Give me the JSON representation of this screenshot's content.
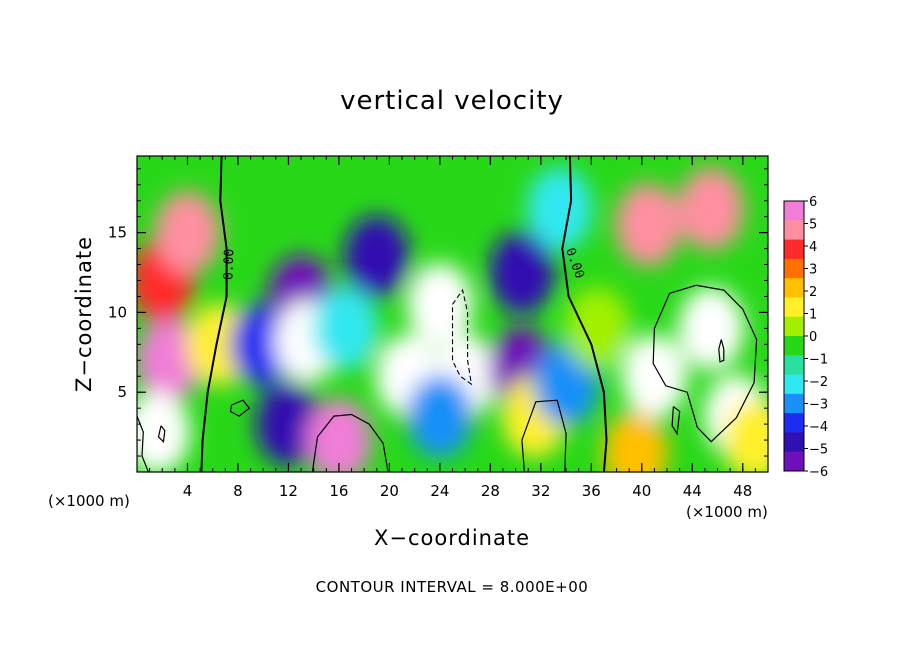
{
  "chart_data": {
    "type": "heatmap",
    "title": "vertical velocity",
    "xlabel": "X−coordinate",
    "ylabel": "Z−coordinate",
    "x_unit_label": "(×1000 m)",
    "footnote": "CONTOUR INTERVAL = 8.000E+00",
    "xlim": [
      0,
      50
    ],
    "ylim": [
      0,
      19.8
    ],
    "x_ticks": [
      4,
      8,
      12,
      16,
      20,
      24,
      28,
      32,
      36,
      40,
      44,
      48
    ],
    "y_ticks": [
      5,
      10,
      15
    ],
    "x_minor_step": 1,
    "y_minor_step": 1,
    "contour_labels": [
      {
        "text": "0.00",
        "x": 7.6,
        "z": 13.0
      },
      {
        "text": "0.00",
        "x": 34.4,
        "z": 13.0
      }
    ],
    "colorbar": {
      "ticks": [
        6,
        5,
        4,
        3,
        2,
        1,
        0,
        -1,
        -2,
        -3,
        -4,
        -5,
        -6
      ],
      "tick_labels": [
        "6",
        "5",
        "4",
        "3",
        "2",
        "1",
        "0",
        "−1",
        "−2",
        "−3",
        "−4",
        "−5",
        "−6"
      ],
      "range": [
        -6,
        6
      ],
      "colors": [
        "#f07dd8",
        "#ff8fa0",
        "#ff2a2a",
        "#ff7000",
        "#ffc000",
        "#fff02a",
        "#a0f000",
        "#28d818",
        "#28e0a0",
        "#30e8f0",
        "#1890f8",
        "#1c2cf0",
        "#3010b0",
        "#7010b8"
      ]
    },
    "regions": [
      {
        "x": 2.0,
        "z": 12.0,
        "v": 4.2
      },
      {
        "x": 4.0,
        "z": 15.0,
        "v": 5.0
      },
      {
        "x": 2.5,
        "z": 7.0,
        "v": 5.2
      },
      {
        "x": 1.6,
        "z": 2.5,
        "v": 7.0
      },
      {
        "x": 6.5,
        "z": 8.0,
        "v": 1.4
      },
      {
        "x": 10.0,
        "z": 8.0,
        "v": -3.5
      },
      {
        "x": 13.0,
        "z": 11.0,
        "v": -5.2
      },
      {
        "x": 13.5,
        "z": 8.2,
        "v": -7.5
      },
      {
        "x": 12.0,
        "z": 3.0,
        "v": -5.0
      },
      {
        "x": 16.0,
        "z": 2.0,
        "v": 5.8
      },
      {
        "x": 16.5,
        "z": 9.0,
        "v": -2.2
      },
      {
        "x": 19.0,
        "z": 13.5,
        "v": -4.5
      },
      {
        "x": 24.0,
        "z": 10.5,
        "v": -8.5
      },
      {
        "x": 21.5,
        "z": 6.0,
        "v": -7.8
      },
      {
        "x": 26.0,
        "z": 6.0,
        "v": -8.0
      },
      {
        "x": 24.0,
        "z": 3.5,
        "v": -3.0
      },
      {
        "x": 30.5,
        "z": 12.5,
        "v": -4.8
      },
      {
        "x": 30.5,
        "z": 6.5,
        "v": -5.2
      },
      {
        "x": 31.5,
        "z": 3.5,
        "v": 1.0
      },
      {
        "x": 34.0,
        "z": 5.5,
        "v": -3.2
      },
      {
        "x": 33.5,
        "z": 16.5,
        "v": -2.0
      },
      {
        "x": 36.5,
        "z": 9.0,
        "v": 0.8
      },
      {
        "x": 40.5,
        "z": 15.5,
        "v": 4.6
      },
      {
        "x": 45.5,
        "z": 16.5,
        "v": 4.4
      },
      {
        "x": 45.5,
        "z": 9.0,
        "v": 8.5
      },
      {
        "x": 41.0,
        "z": 6.0,
        "v": 8.0
      },
      {
        "x": 47.5,
        "z": 3.5,
        "v": 7.2
      },
      {
        "x": 39.5,
        "z": 1.2,
        "v": 2.5
      },
      {
        "x": 49.0,
        "z": 2.0,
        "v": 1.5
      }
    ],
    "contours_solid": [
      [
        [
          6.7,
          19.8
        ],
        [
          6.6,
          17.0
        ],
        [
          7.1,
          14.0
        ],
        [
          7.1,
          11.0
        ],
        [
          6.3,
          8.0
        ],
        [
          5.6,
          5.0
        ],
        [
          5.2,
          2.0
        ],
        [
          5.1,
          0.0
        ]
      ],
      [
        [
          34.3,
          19.8
        ],
        [
          34.4,
          17.0
        ],
        [
          33.7,
          14.0
        ],
        [
          34.2,
          11.0
        ],
        [
          36.0,
          8.0
        ],
        [
          37.0,
          5.0
        ],
        [
          37.2,
          2.0
        ],
        [
          37.0,
          0.0
        ]
      ],
      [
        [
          0.0,
          3.5
        ],
        [
          0.5,
          2.5
        ],
        [
          0.4,
          1.0
        ],
        [
          0.9,
          0.0
        ]
      ],
      [
        [
          13.9,
          0.0
        ],
        [
          14.3,
          2.2
        ],
        [
          15.6,
          3.5
        ],
        [
          17.0,
          3.6
        ],
        [
          18.4,
          3.0
        ],
        [
          19.5,
          1.8
        ],
        [
          19.9,
          0.0
        ]
      ],
      [
        [
          30.7,
          0.0
        ],
        [
          30.5,
          2.0
        ],
        [
          31.6,
          4.4
        ],
        [
          33.3,
          4.5
        ],
        [
          34.0,
          2.4
        ],
        [
          33.9,
          0.0
        ]
      ],
      [
        [
          7.5,
          4.2
        ],
        [
          8.4,
          4.5
        ],
        [
          8.9,
          4.0
        ],
        [
          8.1,
          3.5
        ],
        [
          7.4,
          3.8
        ],
        [
          7.5,
          4.2
        ]
      ],
      [
        [
          1.9,
          2.9
        ],
        [
          2.2,
          2.6
        ],
        [
          2.1,
          1.9
        ],
        [
          1.7,
          2.2
        ],
        [
          1.9,
          2.9
        ]
      ],
      [
        [
          42.2,
          11.2
        ],
        [
          44.3,
          11.7
        ],
        [
          46.5,
          11.4
        ],
        [
          48.0,
          10.2
        ],
        [
          49.1,
          8.3
        ],
        [
          48.9,
          5.6
        ],
        [
          47.5,
          3.4
        ],
        [
          45.5,
          1.9
        ],
        [
          44.4,
          2.8
        ],
        [
          43.6,
          5.0
        ],
        [
          41.9,
          5.4
        ],
        [
          40.9,
          6.8
        ],
        [
          41.0,
          9.0
        ],
        [
          42.2,
          11.2
        ]
      ],
      [
        [
          46.3,
          8.3
        ],
        [
          46.5,
          7.7
        ],
        [
          46.5,
          7.0
        ],
        [
          46.2,
          6.9
        ],
        [
          46.1,
          7.7
        ],
        [
          46.3,
          8.3
        ]
      ],
      [
        [
          42.5,
          4.1
        ],
        [
          43.0,
          3.8
        ],
        [
          42.8,
          2.4
        ],
        [
          42.4,
          2.9
        ],
        [
          42.5,
          4.1
        ]
      ]
    ],
    "contours_dashed": [
      [
        [
          25.0,
          10.5
        ],
        [
          25.8,
          11.4
        ],
        [
          26.2,
          10.0
        ],
        [
          26.2,
          7.0
        ],
        [
          26.5,
          5.5
        ],
        [
          25.6,
          6.0
        ],
        [
          25.0,
          7.0
        ],
        [
          25.0,
          10.5
        ]
      ]
    ]
  }
}
